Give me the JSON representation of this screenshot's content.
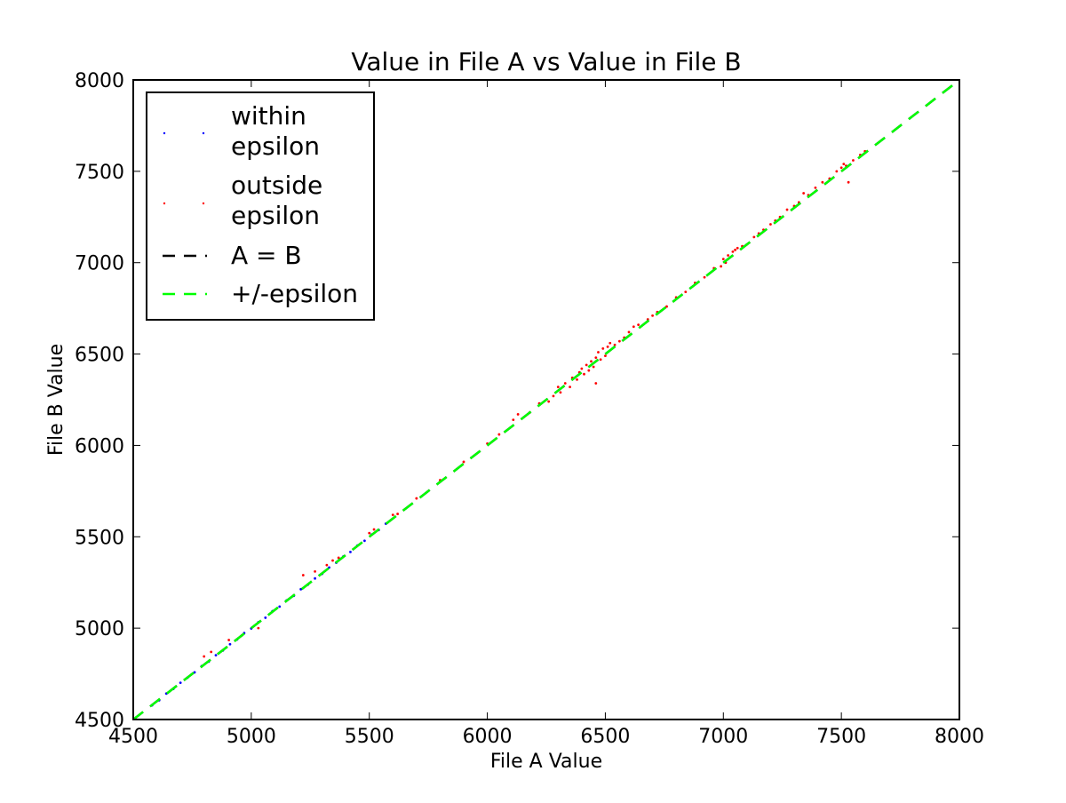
{
  "chart_data": {
    "type": "scatter",
    "title": "Value in File A vs Value in File B",
    "xlabel": "File A Value",
    "ylabel": "File B Value",
    "xlim": [
      4500,
      8000
    ],
    "ylim": [
      4500,
      8000
    ],
    "xticks": [
      4500,
      5000,
      5500,
      6000,
      6500,
      7000,
      7500,
      8000
    ],
    "yticks": [
      4500,
      5000,
      5500,
      6000,
      6500,
      7000,
      7500,
      8000
    ],
    "xtick_labels": [
      "4500",
      "5000",
      "5500",
      "6000",
      "6500",
      "7000",
      "7500",
      "8000"
    ],
    "ytick_labels": [
      "4500",
      "5000",
      "5500",
      "6000",
      "6500",
      "7000",
      "7500",
      "8000"
    ],
    "grid": false,
    "legend_position": "top-left",
    "series": [
      {
        "name": "within epsilon",
        "kind": "points",
        "color": "#0000ff",
        "points": [
          [
            4580,
            4578
          ],
          [
            4610,
            4605
          ],
          [
            4640,
            4642
          ],
          [
            4670,
            4668
          ],
          [
            4700,
            4701
          ],
          [
            4730,
            4729
          ],
          [
            4760,
            4758
          ],
          [
            4790,
            4792
          ],
          [
            4820,
            4817
          ],
          [
            4850,
            4852
          ],
          [
            4880,
            4878
          ],
          [
            4910,
            4912
          ],
          [
            4940,
            4938
          ],
          [
            4970,
            4973
          ],
          [
            5000,
            4998
          ],
          [
            5030,
            5032
          ],
          [
            5060,
            5057
          ],
          [
            5090,
            5093
          ],
          [
            5120,
            5118
          ],
          [
            5150,
            5152
          ],
          [
            5180,
            5177
          ],
          [
            5210,
            5213
          ],
          [
            5240,
            5238
          ],
          [
            5270,
            5272
          ],
          [
            5300,
            5297
          ],
          [
            5330,
            5332
          ],
          [
            5360,
            5358
          ],
          [
            5390,
            5392
          ],
          [
            5420,
            5417
          ],
          [
            5450,
            5452
          ],
          [
            5480,
            5478
          ],
          [
            5510,
            5512
          ],
          [
            5540,
            5537
          ],
          [
            5570,
            5572
          ]
        ]
      },
      {
        "name": "outside epsilon",
        "kind": "points",
        "color": "#ff0000",
        "points": [
          [
            4800,
            4845
          ],
          [
            4830,
            4870
          ],
          [
            4905,
            4935
          ],
          [
            4960,
            4960
          ],
          [
            5030,
            5000
          ],
          [
            5220,
            5290
          ],
          [
            5270,
            5310
          ],
          [
            5320,
            5345
          ],
          [
            5345,
            5370
          ],
          [
            5370,
            5385
          ],
          [
            5500,
            5520
          ],
          [
            5520,
            5540
          ],
          [
            5600,
            5620
          ],
          [
            5620,
            5625
          ],
          [
            5700,
            5710
          ],
          [
            5800,
            5810
          ],
          [
            5900,
            5910
          ],
          [
            6000,
            6010
          ],
          [
            6050,
            6060
          ],
          [
            6110,
            6140
          ],
          [
            6130,
            6170
          ],
          [
            6180,
            6180
          ],
          [
            6220,
            6230
          ],
          [
            6260,
            6240
          ],
          [
            6280,
            6270
          ],
          [
            6300,
            6320
          ],
          [
            6310,
            6290
          ],
          [
            6330,
            6340
          ],
          [
            6350,
            6320
          ],
          [
            6360,
            6370
          ],
          [
            6380,
            6360
          ],
          [
            6390,
            6400
          ],
          [
            6400,
            6420
          ],
          [
            6410,
            6390
          ],
          [
            6420,
            6440
          ],
          [
            6430,
            6410
          ],
          [
            6440,
            6460
          ],
          [
            6450,
            6430
          ],
          [
            6460,
            6480
          ],
          [
            6460,
            6340
          ],
          [
            6470,
            6510
          ],
          [
            6480,
            6470
          ],
          [
            6490,
            6530
          ],
          [
            6500,
            6490
          ],
          [
            6510,
            6540
          ],
          [
            6520,
            6560
          ],
          [
            6540,
            6550
          ],
          [
            6560,
            6570
          ],
          [
            6580,
            6590
          ],
          [
            6600,
            6620
          ],
          [
            6620,
            6650
          ],
          [
            6640,
            6660
          ],
          [
            6680,
            6690
          ],
          [
            6700,
            6710
          ],
          [
            6720,
            6730
          ],
          [
            6760,
            6760
          ],
          [
            6800,
            6810
          ],
          [
            6840,
            6840
          ],
          [
            6880,
            6890
          ],
          [
            6920,
            6920
          ],
          [
            6960,
            6970
          ],
          [
            6990,
            6980
          ],
          [
            7000,
            7020
          ],
          [
            7010,
            7000
          ],
          [
            7020,
            7040
          ],
          [
            7040,
            7060
          ],
          [
            7050,
            7070
          ],
          [
            7060,
            7080
          ],
          [
            7080,
            7090
          ],
          [
            7100,
            7100
          ],
          [
            7130,
            7140
          ],
          [
            7150,
            7160
          ],
          [
            7170,
            7180
          ],
          [
            7200,
            7210
          ],
          [
            7220,
            7230
          ],
          [
            7240,
            7250
          ],
          [
            7270,
            7290
          ],
          [
            7300,
            7310
          ],
          [
            7320,
            7330
          ],
          [
            7340,
            7380
          ],
          [
            7360,
            7370
          ],
          [
            7390,
            7410
          ],
          [
            7420,
            7440
          ],
          [
            7450,
            7460
          ],
          [
            7480,
            7500
          ],
          [
            7500,
            7520
          ],
          [
            7510,
            7540
          ],
          [
            7520,
            7530
          ],
          [
            7530,
            7440
          ],
          [
            7550,
            7560
          ],
          [
            7580,
            7590
          ],
          [
            7600,
            7610
          ]
        ]
      },
      {
        "name": "A = B",
        "kind": "line",
        "style": "dashed",
        "color": "#000000",
        "x": [
          4500,
          8000
        ],
        "y": [
          4500,
          8000
        ]
      },
      {
        "name": "+/-epsilon",
        "kind": "line",
        "style": "dashed",
        "color": "#00ff00",
        "x": [
          4500,
          8000
        ],
        "y": [
          4500,
          8000
        ]
      }
    ],
    "legend": [
      {
        "label_line1": "within",
        "label_line2": "epsilon"
      },
      {
        "label_line1": "outside",
        "label_line2": "epsilon"
      },
      {
        "label_line1": "A = B"
      },
      {
        "label_line1": "+/-epsilon"
      }
    ]
  }
}
